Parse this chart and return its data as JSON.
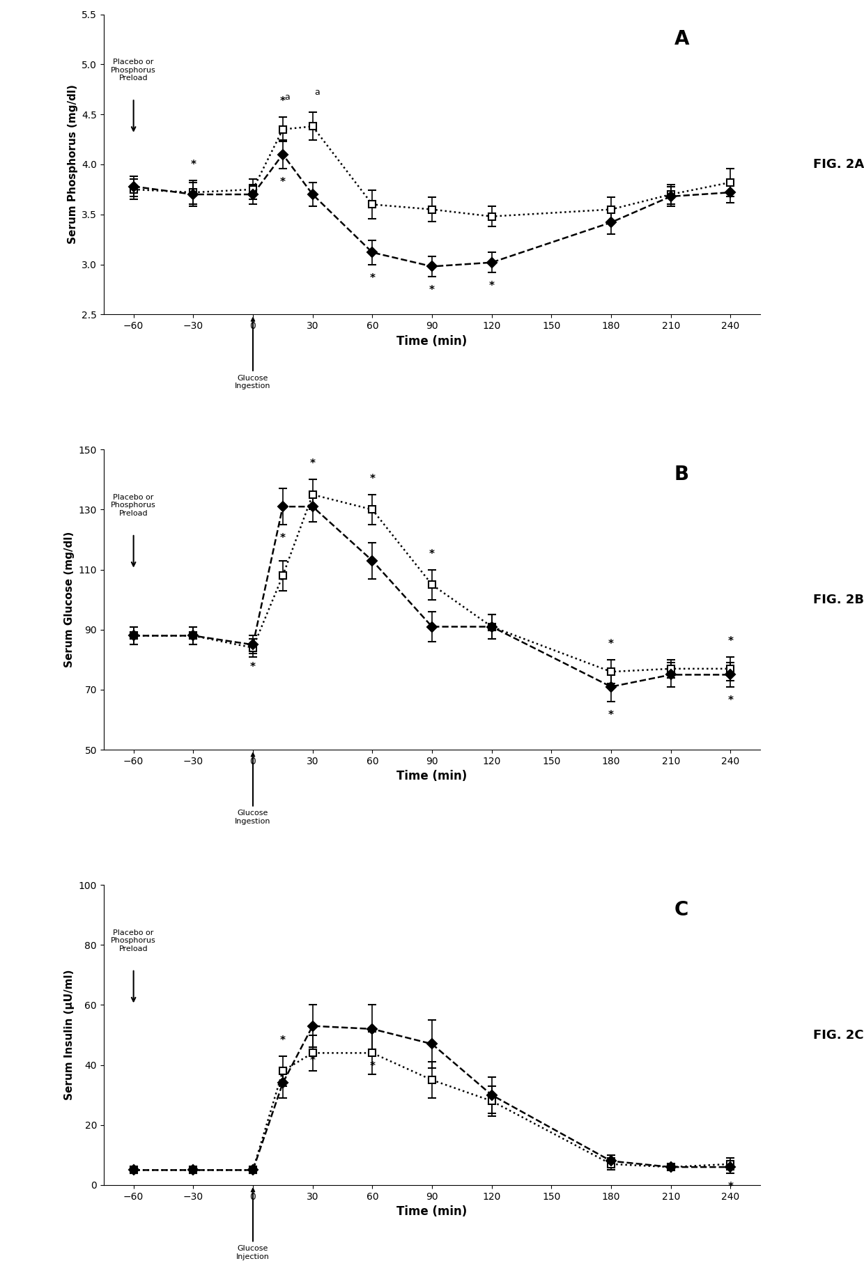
{
  "time_points": [
    -60,
    -30,
    0,
    15,
    30,
    60,
    90,
    120,
    150,
    180,
    210,
    240
  ],
  "panel_A": {
    "title": "A",
    "ylabel": "Serum Phosphorus (mg/dl)",
    "ylim": [
      2.5,
      5.5
    ],
    "yticks": [
      2.5,
      3.0,
      3.5,
      4.0,
      4.5,
      5.0,
      5.5
    ],
    "xlabel": "Time (min)",
    "preload_label": "Placebo or\nPhosphorus\nPreload",
    "glucose_label": "Glucose\nIngestion",
    "placebo_y": [
      3.75,
      3.72,
      3.75,
      4.35,
      4.38,
      3.6,
      3.55,
      3.48,
      null,
      3.55,
      3.7,
      3.82
    ],
    "placebo_err": [
      0.1,
      0.12,
      0.1,
      0.12,
      0.14,
      0.14,
      0.12,
      0.1,
      null,
      0.12,
      0.1,
      0.14
    ],
    "phosphorus_y": [
      3.78,
      3.7,
      3.7,
      4.1,
      3.7,
      3.12,
      2.98,
      3.02,
      null,
      3.42,
      3.68,
      3.72
    ],
    "phosphorus_err": [
      0.1,
      0.12,
      0.1,
      0.14,
      0.12,
      0.12,
      0.1,
      0.1,
      null,
      0.12,
      0.1,
      0.1
    ],
    "star_placebo": [
      false,
      true,
      false,
      true,
      false,
      false,
      false,
      false,
      null,
      false,
      false,
      false
    ],
    "star_phosphorus": [
      false,
      false,
      false,
      true,
      false,
      true,
      true,
      true,
      null,
      false,
      false,
      false
    ],
    "annot_a_placebo": [
      false,
      false,
      false,
      true,
      true,
      false,
      false,
      false,
      null,
      false,
      false,
      false
    ]
  },
  "panel_B": {
    "title": "B",
    "ylabel": "Serum Glucose (mg/dl)",
    "ylim": [
      50,
      150
    ],
    "yticks": [
      50,
      70,
      90,
      110,
      130,
      150
    ],
    "xlabel": "Time (min)",
    "preload_label": "Placebo or\nPhosphorus\nPreload",
    "glucose_label": "Glucose\nIngestion",
    "placebo_y": [
      88,
      88,
      84,
      108,
      135,
      130,
      105,
      91,
      null,
      76,
      77,
      77
    ],
    "placebo_err": [
      3,
      3,
      3,
      5,
      5,
      5,
      5,
      4,
      null,
      4,
      3,
      4
    ],
    "phosphorus_y": [
      88,
      88,
      85,
      131,
      131,
      113,
      91,
      91,
      null,
      71,
      75,
      75
    ],
    "phosphorus_err": [
      3,
      3,
      3,
      6,
      5,
      6,
      5,
      4,
      null,
      5,
      4,
      4
    ],
    "star_placebo": [
      false,
      false,
      false,
      false,
      true,
      true,
      true,
      false,
      null,
      true,
      false,
      true
    ],
    "star_phosphorus": [
      false,
      false,
      true,
      true,
      false,
      false,
      false,
      false,
      null,
      true,
      false,
      true
    ]
  },
  "panel_C": {
    "title": "C",
    "ylabel": "Serum Insulin (μU/ml)",
    "ylim": [
      0,
      100
    ],
    "yticks": [
      0,
      20,
      40,
      60,
      80,
      100
    ],
    "xlabel": "Time (min)",
    "preload_label": "Placebo or\nPhosphorus\nPreload",
    "glucose_label": "Glucose\nInjection",
    "placebo_y": [
      5,
      5,
      5,
      38,
      44,
      44,
      35,
      28,
      null,
      7,
      6,
      7
    ],
    "placebo_err": [
      1,
      1,
      1,
      5,
      6,
      7,
      6,
      5,
      null,
      2,
      1,
      2
    ],
    "phosphorus_y": [
      5,
      5,
      5,
      34,
      53,
      52,
      47,
      30,
      null,
      8,
      6,
      6
    ],
    "phosphorus_err": [
      1,
      1,
      1,
      5,
      7,
      8,
      8,
      6,
      null,
      2,
      1,
      2
    ],
    "star_placebo": [
      false,
      false,
      false,
      true,
      false,
      false,
      true,
      false,
      null,
      false,
      false,
      false
    ],
    "star_phosphorus": [
      false,
      false,
      false,
      false,
      true,
      true,
      true,
      false,
      null,
      false,
      false,
      true
    ]
  },
  "fig_labels": [
    "FIG. 2A",
    "FIG. 2B",
    "FIG. 2C"
  ],
  "background_color": "#ffffff",
  "line_color": "#000000",
  "placebo_marker": "s",
  "phosphorus_marker": "D",
  "placebo_linestyle": "dotted",
  "phosphorus_linestyle": "dashed",
  "markersize": 7,
  "linewidth": 1.8,
  "capsize": 4,
  "elinewidth": 1.2
}
